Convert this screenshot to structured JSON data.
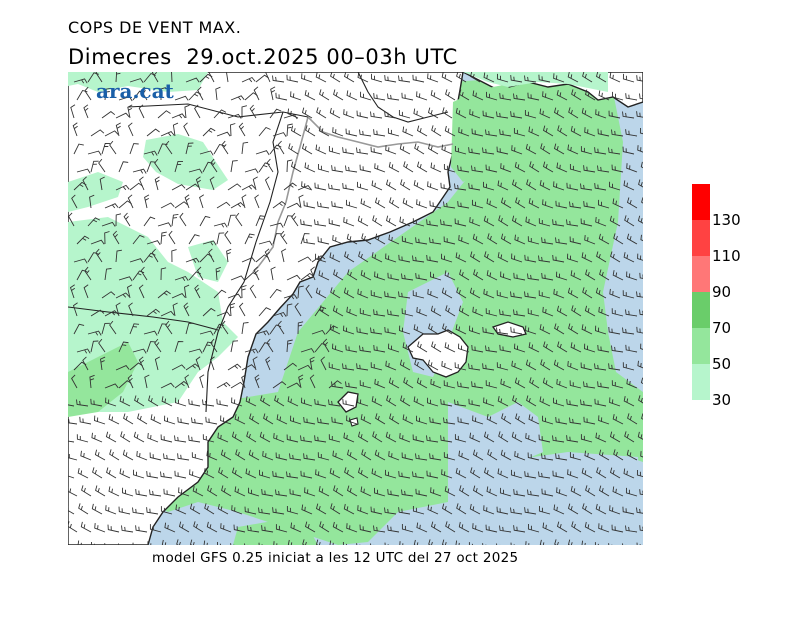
{
  "header": {
    "title": "COPS DE VENT MAX.",
    "day": "Dimecres",
    "date": "29.oct.2025",
    "time": "00–03h UTC"
  },
  "logo": {
    "text": "ara.cat"
  },
  "footer": {
    "model_text": "model GFS 0.25 iniciat a les 12 UTC del 27 oct 2025"
  },
  "legend": {
    "levels": [
      {
        "label": "30",
        "color": "#b6f5cc"
      },
      {
        "label": "50",
        "color": "#94e69c"
      },
      {
        "label": "70",
        "color": "#6acd6a"
      },
      {
        "label": "90",
        "color": "#ff7777"
      },
      {
        "label": "110",
        "color": "#ff4242"
      },
      {
        "label": "130",
        "color": "#ff0000"
      }
    ]
  },
  "colors": {
    "sea": "#bcd6ea",
    "land": "#ffffff",
    "coast": "#222222",
    "border": "#999999",
    "barb": "#333333"
  }
}
